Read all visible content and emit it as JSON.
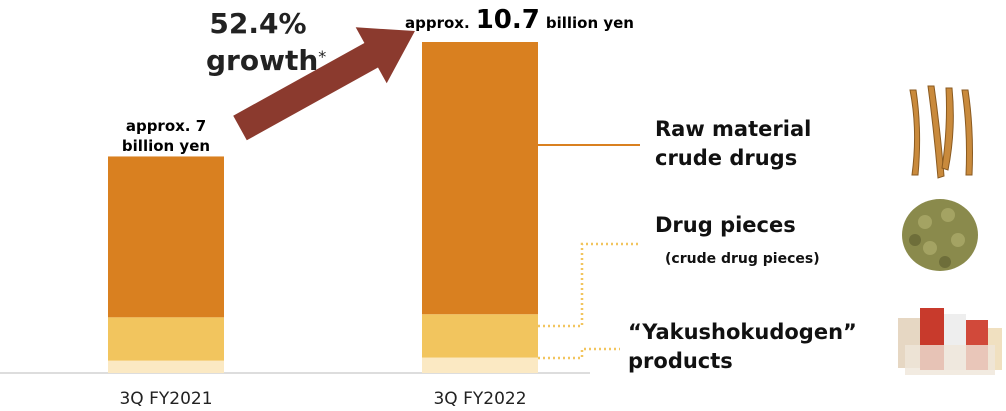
{
  "chart_data": {
    "type": "stacked_bar",
    "categories": [
      "3Q FY2021",
      "3Q FY2022"
    ],
    "series": [
      {
        "name": "“Yakushokudogen” products",
        "color": "#fbe9c3",
        "values": [
          0.4,
          0.5
        ]
      },
      {
        "name": "Drug pieces",
        "subname": "(crude drug pieces)",
        "color": "#f2c55e",
        "values": [
          1.4,
          1.4
        ]
      },
      {
        "name": "Raw material crude drugs",
        "color": "#d98020",
        "values": [
          5.2,
          8.8
        ]
      }
    ],
    "total_labels": [
      [
        "approx. 7",
        "billion yen"
      ],
      [
        "approx.",
        "10.7",
        "billion yen"
      ]
    ],
    "growth_label": [
      "52.4%",
      "growth",
      "*"
    ]
  }
}
